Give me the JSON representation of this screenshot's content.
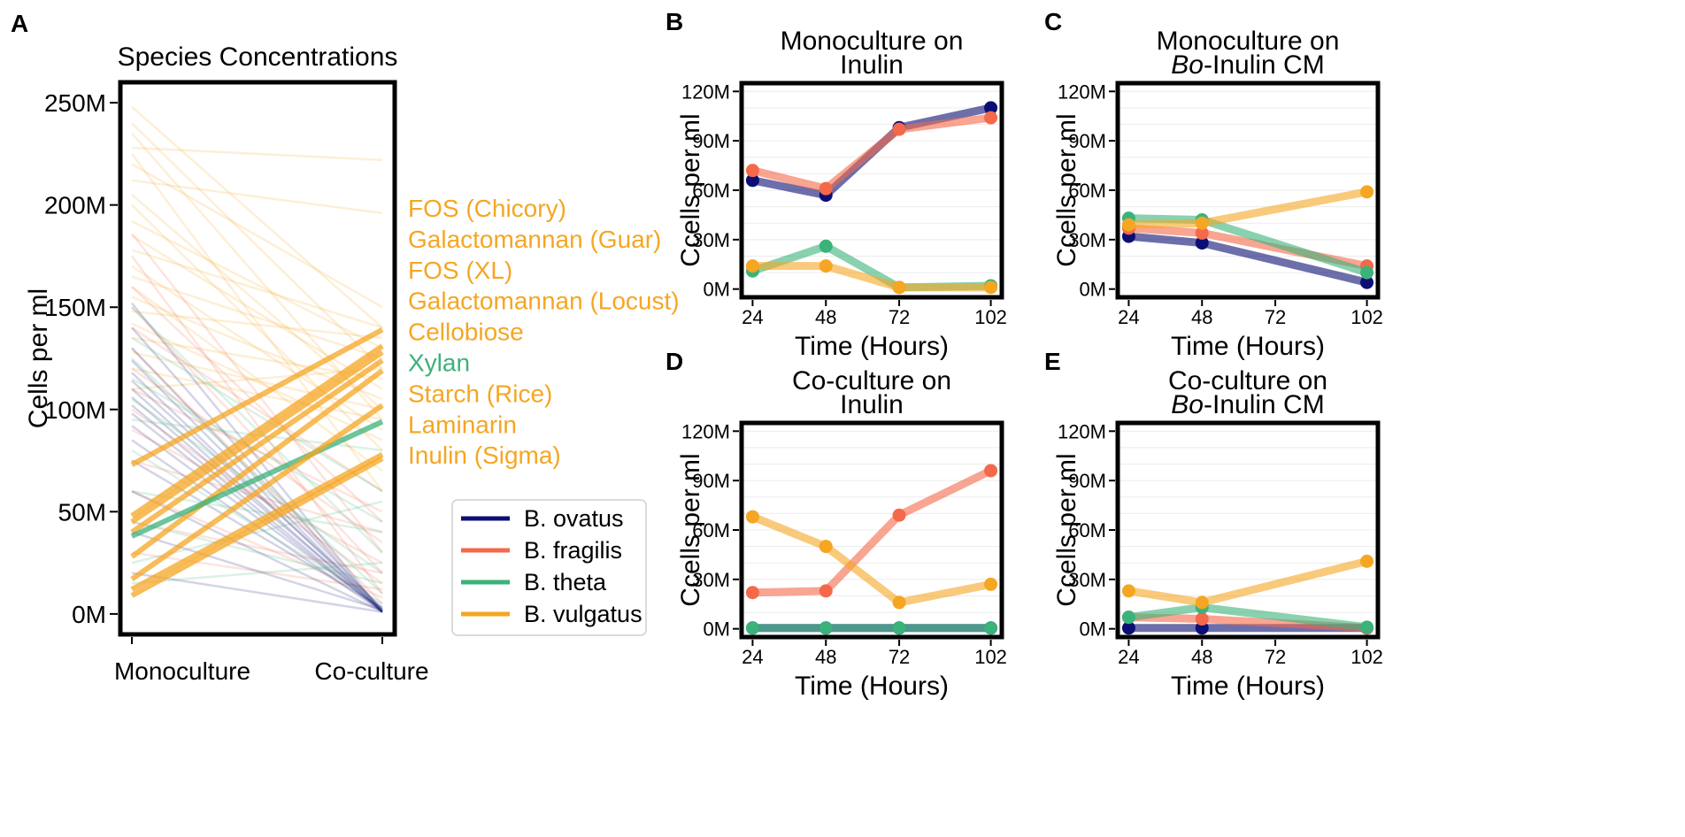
{
  "colors": {
    "B. ovatus": "#0b0f73",
    "B. fragilis": "#f4694a",
    "B. theta": "#3bb27a",
    "B. vulgatus": "#f5a623"
  },
  "chart_data": [
    {
      "panel": "A",
      "type": "line",
      "title": "Species Concentrations",
      "xlabel": "",
      "ylabel": "Cells per ml",
      "categories": [
        "Monoculture",
        "Co-culture"
      ],
      "ylim": [
        -10,
        260
      ],
      "yticks": [
        0,
        50,
        100,
        150,
        200,
        250
      ],
      "ytick_labels": [
        "0M",
        "50M",
        "100M",
        "150M",
        "200M",
        "250M"
      ],
      "legend": {
        "placement": "lower-right-outside",
        "entries": [
          {
            "label": "B. ovatus",
            "color": "#0b0f73"
          },
          {
            "label": "B. fragilis",
            "color": "#f4694a"
          },
          {
            "label": "B. theta",
            "color": "#3bb27a"
          },
          {
            "label": "B. vulgatus",
            "color": "#f5a623"
          }
        ]
      },
      "annotations": [
        {
          "text": "FOS (Chicory)",
          "color": "#f5a623"
        },
        {
          "text": "Galactomannan (Guar)",
          "color": "#f5a623"
        },
        {
          "text": "FOS (XL)",
          "color": "#f5a623"
        },
        {
          "text": "Galactomannan (Locust)",
          "color": "#f5a623"
        },
        {
          "text": "Cellobiose",
          "color": "#f5a623"
        },
        {
          "text": "Xylan",
          "color": "#3bb27a"
        },
        {
          "text": "Starch (Rice)",
          "color": "#f5a623"
        },
        {
          "text": "Laminarin",
          "color": "#f5a623"
        },
        {
          "text": "Inulin (Sigma)",
          "color": "#f5a623"
        }
      ],
      "highlighted_series": [
        {
          "name": "B. vulgatus",
          "values": [
            73,
            139
          ]
        },
        {
          "name": "B. vulgatus",
          "values": [
            48,
            131
          ]
        },
        {
          "name": "B. vulgatus",
          "values": [
            45,
            128
          ]
        },
        {
          "name": "B. vulgatus",
          "values": [
            40,
            124
          ]
        },
        {
          "name": "B. vulgatus",
          "values": [
            28,
            119
          ]
        },
        {
          "name": "B. theta",
          "values": [
            38,
            94
          ]
        },
        {
          "name": "B. vulgatus",
          "values": [
            17,
            102
          ]
        },
        {
          "name": "B. vulgatus",
          "values": [
            12,
            78
          ]
        },
        {
          "name": "B. vulgatus",
          "values": [
            9,
            76
          ]
        }
      ],
      "background_series": [
        {
          "name": "B. vulgatus",
          "values": [
            248,
            140
          ]
        },
        {
          "name": "B. vulgatus",
          "values": [
            240,
            120
          ]
        },
        {
          "name": "B. vulgatus",
          "values": [
            235,
            95
          ]
        },
        {
          "name": "B. vulgatus",
          "values": [
            228,
            222
          ]
        },
        {
          "name": "B. vulgatus",
          "values": [
            225,
            60
          ]
        },
        {
          "name": "B. vulgatus",
          "values": [
            220,
            150
          ]
        },
        {
          "name": "B. vulgatus",
          "values": [
            212,
            196
          ]
        },
        {
          "name": "B. vulgatus",
          "values": [
            205,
            100
          ]
        },
        {
          "name": "B. vulgatus",
          "values": [
            200,
            80
          ]
        },
        {
          "name": "B. vulgatus",
          "values": [
            192,
            130
          ]
        },
        {
          "name": "B. vulgatus",
          "values": [
            185,
            110
          ]
        },
        {
          "name": "B. vulgatus",
          "values": [
            178,
            140
          ]
        },
        {
          "name": "B. vulgatus",
          "values": [
            170,
            90
          ]
        },
        {
          "name": "B. vulgatus",
          "values": [
            165,
            125
          ]
        },
        {
          "name": "B. vulgatus",
          "values": [
            160,
            70
          ]
        },
        {
          "name": "B. vulgatus",
          "values": [
            155,
            105
          ]
        },
        {
          "name": "B. vulgatus",
          "values": [
            148,
            135
          ]
        },
        {
          "name": "B. vulgatus",
          "values": [
            142,
            85
          ]
        },
        {
          "name": "B. vulgatus",
          "values": [
            135,
            115
          ]
        },
        {
          "name": "B. vulgatus",
          "values": [
            128,
            100
          ]
        },
        {
          "name": "B. vulgatus",
          "values": [
            120,
            95
          ]
        },
        {
          "name": "B. vulgatus",
          "values": [
            110,
            120
          ]
        },
        {
          "name": "B. fragilis",
          "values": [
            186,
            30
          ]
        },
        {
          "name": "B. fragilis",
          "values": [
            175,
            10
          ]
        },
        {
          "name": "B. fragilis",
          "values": [
            160,
            45
          ]
        },
        {
          "name": "B. fragilis",
          "values": [
            150,
            20
          ]
        },
        {
          "name": "B. fragilis",
          "values": [
            140,
            60
          ]
        },
        {
          "name": "B. fragilis",
          "values": [
            130,
            5
          ]
        },
        {
          "name": "B. fragilis",
          "values": [
            120,
            35
          ]
        },
        {
          "name": "B. fragilis",
          "values": [
            110,
            50
          ]
        },
        {
          "name": "B. fragilis",
          "values": [
            100,
            15
          ]
        },
        {
          "name": "B. fragilis",
          "values": [
            90,
            25
          ]
        },
        {
          "name": "B. fragilis",
          "values": [
            75,
            40
          ]
        },
        {
          "name": "B. fragilis",
          "values": [
            60,
            8
          ]
        },
        {
          "name": "B. fragilis",
          "values": [
            45,
            20
          ]
        },
        {
          "name": "B. fragilis",
          "values": [
            30,
            12
          ]
        },
        {
          "name": "B. ovatus",
          "values": [
            152,
            1
          ]
        },
        {
          "name": "B. ovatus",
          "values": [
            140,
            1
          ]
        },
        {
          "name": "B. ovatus",
          "values": [
            130,
            2
          ]
        },
        {
          "name": "B. ovatus",
          "values": [
            124,
            1
          ]
        },
        {
          "name": "B. ovatus",
          "values": [
            118,
            1
          ]
        },
        {
          "name": "B. ovatus",
          "values": [
            114,
            3
          ]
        },
        {
          "name": "B. ovatus",
          "values": [
            110,
            1
          ]
        },
        {
          "name": "B. ovatus",
          "values": [
            106,
            2
          ]
        },
        {
          "name": "B. ovatus",
          "values": [
            102,
            1
          ]
        },
        {
          "name": "B. ovatus",
          "values": [
            98,
            1
          ]
        },
        {
          "name": "B. ovatus",
          "values": [
            92,
            2
          ]
        },
        {
          "name": "B. ovatus",
          "values": [
            85,
            1
          ]
        },
        {
          "name": "B. ovatus",
          "values": [
            75,
            3
          ]
        },
        {
          "name": "B. ovatus",
          "values": [
            60,
            1
          ]
        },
        {
          "name": "B. ovatus",
          "values": [
            40,
            2
          ]
        },
        {
          "name": "B. ovatus",
          "values": [
            20,
            1
          ]
        },
        {
          "name": "B. theta",
          "values": [
            150,
            30
          ]
        },
        {
          "name": "B. theta",
          "values": [
            135,
            60
          ]
        },
        {
          "name": "B. theta",
          "values": [
            125,
            10
          ]
        },
        {
          "name": "B. theta",
          "values": [
            115,
            45
          ]
        },
        {
          "name": "B. theta",
          "values": [
            105,
            20
          ]
        },
        {
          "name": "B. theta",
          "values": [
            95,
            80
          ]
        },
        {
          "name": "B. theta",
          "values": [
            80,
            5
          ]
        },
        {
          "name": "B. theta",
          "values": [
            60,
            40
          ]
        },
        {
          "name": "B. theta",
          "values": [
            45,
            15
          ]
        },
        {
          "name": "B. theta",
          "values": [
            25,
            55
          ]
        },
        {
          "name": "B. theta",
          "values": [
            15,
            25
          ]
        }
      ]
    },
    {
      "panel": "B",
      "type": "line",
      "title": [
        "Monoculture on",
        "Inulin"
      ],
      "xlabel": "Time (Hours)",
      "ylabel": "Ccells per ml",
      "x": [
        24,
        48,
        72,
        102
      ],
      "xticks": [
        "24",
        "48",
        "72",
        "102"
      ],
      "ylim": [
        -5,
        125
      ],
      "yticks": [
        0,
        30,
        60,
        90,
        120
      ],
      "ytick_labels": [
        "0M",
        "30M",
        "60M",
        "90M",
        "120M"
      ],
      "series": [
        {
          "name": "B. ovatus",
          "values": [
            66,
            57,
            98,
            110
          ]
        },
        {
          "name": "B. fragilis",
          "values": [
            72,
            61,
            97,
            104
          ]
        },
        {
          "name": "B. theta",
          "values": [
            11,
            26,
            1,
            2
          ]
        },
        {
          "name": "B. vulgatus",
          "values": [
            14,
            14,
            1,
            1
          ]
        }
      ]
    },
    {
      "panel": "C",
      "type": "line",
      "title": [
        "Monoculture on",
        "Bo-Inulin CM"
      ],
      "xlabel": "Time (Hours)",
      "ylabel": "Ccells per ml",
      "x": [
        24,
        48,
        102
      ],
      "xticks": [
        "24",
        "48",
        "72",
        "102"
      ],
      "ylim": [
        -5,
        125
      ],
      "yticks": [
        0,
        30,
        60,
        90,
        120
      ],
      "ytick_labels": [
        "0M",
        "30M",
        "60M",
        "90M",
        "120M"
      ],
      "series": [
        {
          "name": "B. ovatus",
          "values": [
            32,
            28,
            4
          ]
        },
        {
          "name": "B. fragilis",
          "values": [
            37,
            34,
            14
          ]
        },
        {
          "name": "B. theta",
          "values": [
            43,
            42,
            10
          ]
        },
        {
          "name": "B. vulgatus",
          "values": [
            39,
            40,
            59
          ]
        }
      ]
    },
    {
      "panel": "D",
      "type": "line",
      "title": [
        "Co-culture on",
        "Inulin"
      ],
      "xlabel": "Time (Hours)",
      "ylabel": "Ccells per ml",
      "x": [
        24,
        48,
        72,
        102
      ],
      "xticks": [
        "24",
        "48",
        "72",
        "102"
      ],
      "ylim": [
        -5,
        125
      ],
      "yticks": [
        0,
        30,
        60,
        90,
        120
      ],
      "ytick_labels": [
        "0M",
        "30M",
        "60M",
        "90M",
        "120M"
      ],
      "series": [
        {
          "name": "B. ovatus",
          "values": [
            0.5,
            0.5,
            0.5,
            0.5
          ]
        },
        {
          "name": "B. fragilis",
          "values": [
            22,
            23,
            69,
            96
          ]
        },
        {
          "name": "B. theta",
          "values": [
            0.5,
            0.5,
            0.5,
            0.5
          ]
        },
        {
          "name": "B. vulgatus",
          "values": [
            68,
            50,
            16,
            27
          ]
        }
      ]
    },
    {
      "panel": "E",
      "type": "line",
      "title": [
        "Co-culture on",
        "Bo-Inulin CM"
      ],
      "xlabel": "Time (Hours)",
      "ylabel": "Ccells per ml",
      "x": [
        24,
        48,
        102
      ],
      "xticks": [
        "24",
        "48",
        "72",
        "102"
      ],
      "ylim": [
        -5,
        125
      ],
      "yticks": [
        0,
        30,
        60,
        90,
        120
      ],
      "ytick_labels": [
        "0M",
        "30M",
        "60M",
        "90M",
        "120M"
      ],
      "series": [
        {
          "name": "B. ovatus",
          "values": [
            0.5,
            0.5,
            0.5
          ]
        },
        {
          "name": "B. fragilis",
          "values": [
            7,
            6,
            0.5
          ]
        },
        {
          "name": "B. theta",
          "values": [
            7,
            13,
            1
          ]
        },
        {
          "name": "B. vulgatus",
          "values": [
            23,
            16,
            41
          ]
        }
      ]
    }
  ]
}
